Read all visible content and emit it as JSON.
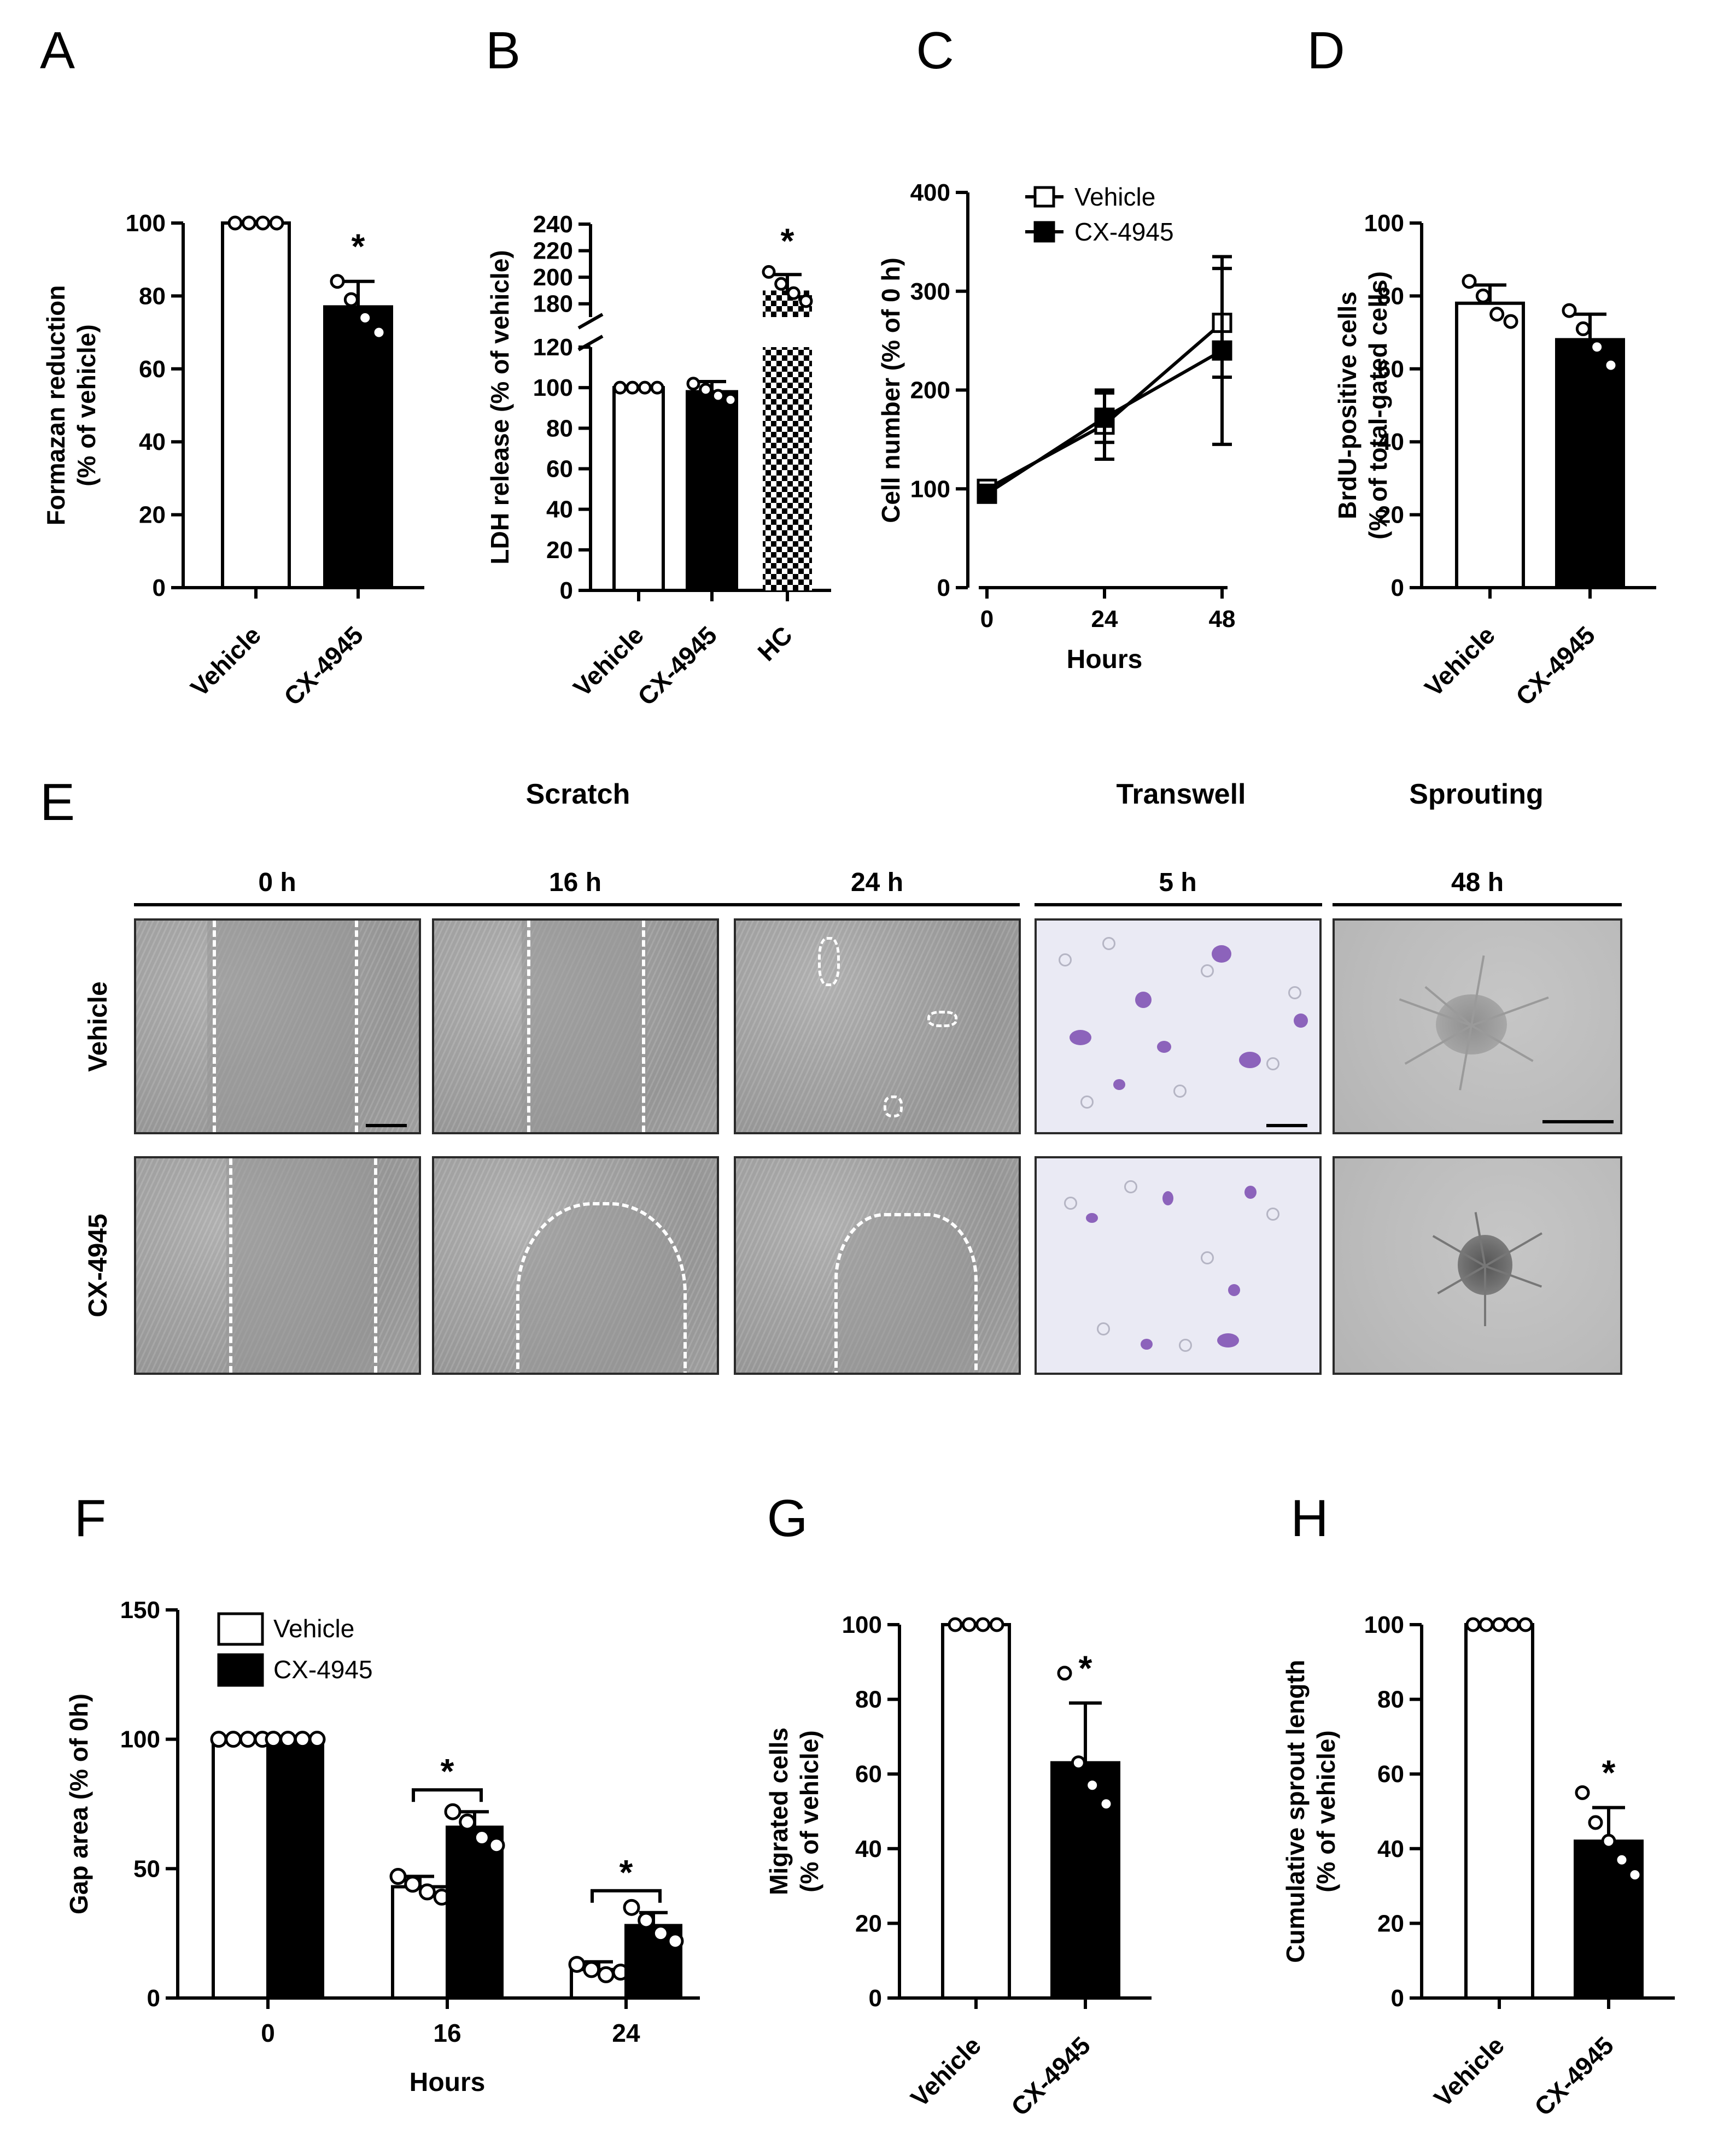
{
  "panel_letters": [
    "A",
    "B",
    "C",
    "D",
    "E",
    "F",
    "G",
    "H"
  ],
  "colors": {
    "vehicle": "#ffffff",
    "cx4945": "#000000",
    "hc": "checkered",
    "line": "#000000"
  },
  "chart_data": [
    {
      "id": "A",
      "type": "bar",
      "ylabel": "Formazan reduction\n(% of vehicle)",
      "categories": [
        "Vehicle",
        "CX-4945"
      ],
      "values": [
        100,
        77
      ],
      "errors": [
        0,
        7
      ],
      "ylim": [
        0,
        100
      ],
      "yticks": [
        0,
        20,
        40,
        60,
        80,
        100
      ],
      "points": [
        [
          100,
          100,
          100,
          100
        ],
        [
          84,
          79,
          74,
          70
        ]
      ],
      "significance": [
        "",
        "*"
      ]
    },
    {
      "id": "B",
      "type": "bar",
      "ylabel": "LDH release (% of vehicle)",
      "categories": [
        "Vehicle",
        "CX-4945",
        "HC"
      ],
      "values": [
        100,
        98,
        190
      ],
      "errors": [
        0,
        5,
        12
      ],
      "lower_ylim": [
        0,
        120
      ],
      "upper_ylim": [
        170,
        240
      ],
      "yticks_lower": [
        0,
        20,
        40,
        60,
        80,
        100,
        120
      ],
      "yticks_upper": [
        180,
        200,
        220,
        240
      ],
      "points": [
        [
          100,
          100,
          100,
          100
        ],
        [
          102,
          99,
          96,
          94
        ],
        [
          204,
          195,
          188,
          182
        ]
      ],
      "significance": [
        "",
        "",
        "*"
      ]
    },
    {
      "id": "C",
      "type": "line",
      "xlabel": "Hours",
      "ylabel": "Cell number (% of 0 h)",
      "x": [
        0,
        24,
        48
      ],
      "xticks": [
        "0",
        "24",
        "48"
      ],
      "ylim": [
        0,
        400
      ],
      "yticks": [
        0,
        100,
        200,
        300,
        400
      ],
      "series": [
        {
          "name": "Vehicle",
          "marker": "open-square",
          "values": [
            100,
            165,
            268
          ],
          "errors": [
            0,
            35,
            55
          ]
        },
        {
          "name": "CX-4945",
          "marker": "filled-square",
          "values": [
            95,
            172,
            240
          ],
          "errors": [
            0,
            25,
            95
          ]
        }
      ]
    },
    {
      "id": "D",
      "type": "bar",
      "ylabel": "BrdU-positive cells\n(% of total-gated cells)",
      "categories": [
        "Vehicle",
        "CX-4945"
      ],
      "values": [
        78,
        68
      ],
      "errors": [
        5,
        7
      ],
      "ylim": [
        0,
        100
      ],
      "yticks": [
        0,
        20,
        40,
        60,
        80,
        100
      ],
      "points": [
        [
          84,
          80,
          75,
          73
        ],
        [
          76,
          71,
          66,
          61
        ]
      ],
      "significance": [
        "",
        ""
      ]
    },
    {
      "id": "F",
      "type": "bar",
      "xlabel": "Hours",
      "ylabel": "Gap area (% of 0h)",
      "categories": [
        "0",
        "16",
        "24"
      ],
      "ylim": [
        0,
        150
      ],
      "yticks": [
        0,
        50,
        100,
        150
      ],
      "series": [
        {
          "name": "Vehicle",
          "values": [
            100,
            43,
            11
          ],
          "errors": [
            0,
            4,
            3
          ],
          "points": [
            [
              100,
              100,
              100,
              100
            ],
            [
              47,
              44,
              41,
              39
            ],
            [
              13,
              11,
              9,
              10
            ]
          ]
        },
        {
          "name": "CX-4945",
          "values": [
            100,
            66,
            28
          ],
          "errors": [
            0,
            6,
            5
          ],
          "points": [
            [
              100,
              100,
              100,
              100
            ],
            [
              72,
              68,
              62,
              59
            ],
            [
              35,
              30,
              25,
              22
            ]
          ]
        }
      ],
      "significance": [
        "",
        "*",
        "*"
      ]
    },
    {
      "id": "G",
      "type": "bar",
      "ylabel": "Migrated cells\n(% of vehicle)",
      "categories": [
        "Vehicle",
        "CX-4945"
      ],
      "values": [
        100,
        63
      ],
      "errors": [
        0,
        16
      ],
      "ylim": [
        0,
        100
      ],
      "yticks": [
        0,
        20,
        40,
        60,
        80,
        100
      ],
      "points": [
        [
          100,
          100,
          100,
          100
        ],
        [
          87,
          63,
          57,
          52
        ]
      ],
      "significance": [
        "",
        "*"
      ]
    },
    {
      "id": "H",
      "type": "bar",
      "ylabel": "Cumulative sprout length\n(% of vehicle)",
      "categories": [
        "Vehicle",
        "CX-4945"
      ],
      "values": [
        100,
        42
      ],
      "errors": [
        0,
        9
      ],
      "ylim": [
        0,
        100
      ],
      "yticks": [
        0,
        20,
        40,
        60,
        80,
        100
      ],
      "points": [
        [
          100,
          100,
          100,
          100,
          100
        ],
        [
          55,
          47,
          42,
          37,
          33
        ]
      ],
      "significance": [
        "",
        "*"
      ]
    }
  ],
  "panel_e": {
    "groups": [
      {
        "title": "Scratch",
        "timepoints": [
          "0 h",
          "16 h",
          "24 h"
        ]
      },
      {
        "title": "Transwell",
        "timepoints": [
          "5 h"
        ]
      },
      {
        "title": "Sprouting",
        "timepoints": [
          "48 h"
        ]
      }
    ],
    "rows": [
      "Vehicle",
      "CX-4945"
    ]
  },
  "text": {
    "legend_vehicle": "Vehicle",
    "legend_cx": "CX-4945"
  }
}
